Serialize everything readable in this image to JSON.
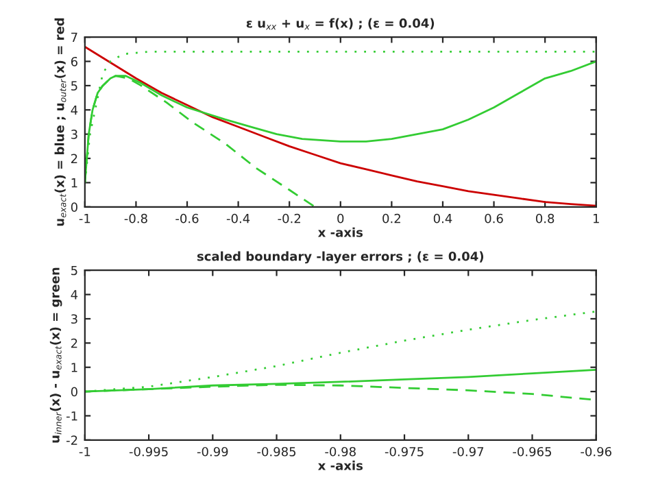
{
  "chart_data": [
    {
      "type": "line",
      "title": "ε u$_{xx}$ + u$_{x}$ = f(x) ; (ε = 0.04)",
      "xlabel": "x -axis",
      "ylabel": "u$_{exact}$(x) = blue ; u$_{outer}$(x) = red",
      "xlim": [
        -1,
        1
      ],
      "ylim": [
        0,
        7
      ],
      "xticks": [
        -1,
        -0.8,
        -0.6,
        -0.4,
        -0.2,
        0,
        0.2,
        0.4,
        0.6,
        0.8,
        1
      ],
      "yticks": [
        0,
        1,
        2,
        3,
        4,
        5,
        6,
        7
      ],
      "grid": false,
      "marker": "none",
      "series": [
        {
          "color": "#cc0000",
          "line_style": "solid",
          "x": [
            -1,
            -0.9,
            -0.8,
            -0.7,
            -0.6,
            -0.5,
            -0.4,
            -0.3,
            -0.2,
            -0.1,
            0,
            0.1,
            0.2,
            0.3,
            0.4,
            0.5,
            0.6,
            0.7,
            0.8,
            0.9,
            1
          ],
          "values": [
            6.6,
            5.95,
            5.3,
            4.7,
            4.2,
            3.7,
            3.3,
            2.9,
            2.5,
            2.15,
            1.8,
            1.55,
            1.3,
            1.05,
            0.85,
            0.65,
            0.5,
            0.35,
            0.2,
            0.12,
            0.05
          ]
        },
        {
          "color": "#33cc33",
          "line_style": "solid",
          "x": [
            -1,
            -0.985,
            -0.97,
            -0.95,
            -0.93,
            -0.9,
            -0.88,
            -0.84,
            -0.78,
            -0.7,
            -0.6,
            -0.45,
            -0.35,
            -0.25,
            -0.15,
            0,
            0.1,
            0.2,
            0.3,
            0.4,
            0.5,
            0.6,
            0.7,
            0.8,
            0.9,
            1
          ],
          "values": [
            1.0,
            3.0,
            4.0,
            4.7,
            5.0,
            5.3,
            5.4,
            5.4,
            5.1,
            4.6,
            4.1,
            3.6,
            3.3,
            3.0,
            2.8,
            2.7,
            2.7,
            2.8,
            3.0,
            3.2,
            3.6,
            4.1,
            4.7,
            5.3,
            5.6,
            6.0
          ]
        },
        {
          "color": "#33cc33",
          "line_style": "dotted",
          "x": [
            -1,
            -0.98,
            -0.96,
            -0.93,
            -0.9,
            -0.85,
            -0.8,
            -0.75,
            -0.5,
            0,
            0.5,
            1
          ],
          "values": [
            1.0,
            3.0,
            4.0,
            5.5,
            6.0,
            6.3,
            6.35,
            6.4,
            6.4,
            6.4,
            6.4,
            6.4
          ]
        },
        {
          "color": "#33cc33",
          "line_style": "dashed",
          "x": [
            -1,
            -0.985,
            -0.97,
            -0.95,
            -0.93,
            -0.9,
            -0.88,
            -0.83,
            -0.78,
            -0.68,
            -0.58,
            -0.45,
            -0.33,
            -0.2,
            -0.1
          ],
          "values": [
            1.0,
            3.0,
            4.0,
            4.7,
            5.0,
            5.3,
            5.4,
            5.3,
            5.0,
            4.3,
            3.5,
            2.6,
            1.6,
            0.7,
            0
          ]
        }
      ]
    },
    {
      "type": "line",
      "title": "scaled boundary -layer errors ; (ε = 0.04)",
      "xlabel": "x -axis",
      "ylabel": "u$_{inner}$(x) - u$_{exact}$(x) = green",
      "xlim": [
        -1,
        -0.96
      ],
      "ylim": [
        -2,
        5
      ],
      "xticks": [
        -1,
        -0.995,
        -0.99,
        -0.985,
        -0.98,
        -0.975,
        -0.97,
        -0.965,
        -0.96
      ],
      "yticks": [
        -2,
        -1,
        0,
        1,
        2,
        3,
        4,
        5
      ],
      "grid": false,
      "marker": "none",
      "series": [
        {
          "color": "#33cc33",
          "line_style": "solid",
          "x": [
            -1,
            -0.995,
            -0.99,
            -0.985,
            -0.98,
            -0.975,
            -0.97,
            -0.965,
            -0.96
          ],
          "values": [
            0,
            0.1,
            0.25,
            0.32,
            0.4,
            0.5,
            0.6,
            0.75,
            0.9
          ]
        },
        {
          "color": "#33cc33",
          "line_style": "dotted",
          "x": [
            -1,
            -0.995,
            -0.99,
            -0.985,
            -0.98,
            -0.975,
            -0.97,
            -0.965,
            -0.96
          ],
          "values": [
            0,
            0.2,
            0.6,
            1.05,
            1.6,
            2.1,
            2.55,
            2.95,
            3.3
          ]
        },
        {
          "color": "#33cc33",
          "line_style": "dashed",
          "x": [
            -1,
            -0.995,
            -0.99,
            -0.985,
            -0.98,
            -0.975,
            -0.97,
            -0.965,
            -0.96
          ],
          "values": [
            0,
            0.1,
            0.2,
            0.28,
            0.25,
            0.15,
            0.05,
            -0.1,
            -0.35
          ]
        }
      ]
    }
  ]
}
